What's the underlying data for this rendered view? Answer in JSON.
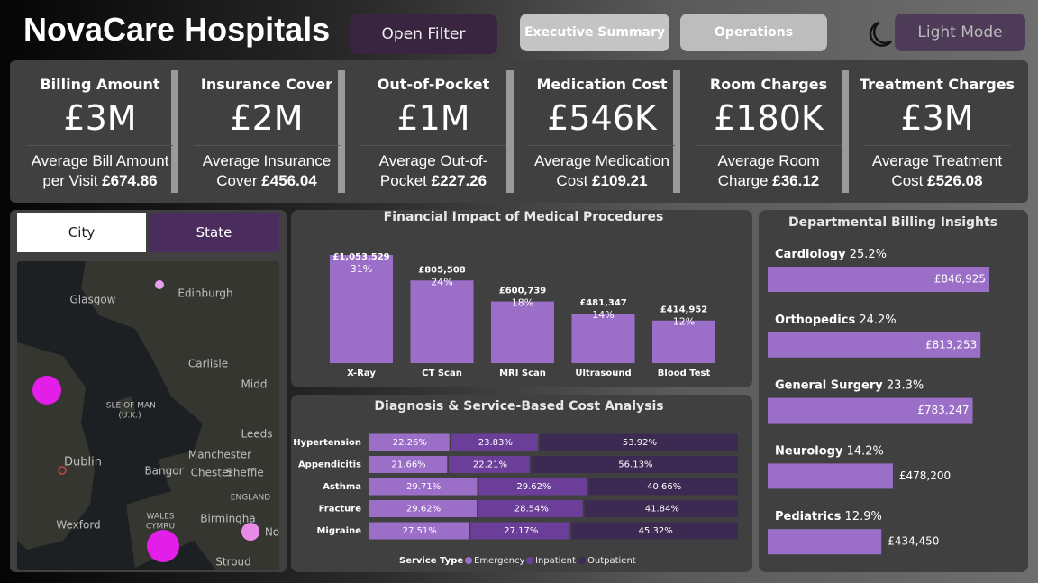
{
  "header": {
    "title": "NovaCare Hospitals",
    "buttons": [
      "Open Filter",
      "Executive Summary",
      "Operations",
      "Light Mode"
    ]
  },
  "kpis": [
    {
      "title": "Billing Amount",
      "value": "£3M",
      "caption": "Average Bill Amount per Visit",
      "caption_value": "£674.86"
    },
    {
      "title": "Insurance Cover",
      "value": "£2M",
      "caption": "Average Insurance Cover",
      "caption_value": "£456.04"
    },
    {
      "title": "Out-of-Pocket",
      "value": "£1M",
      "caption": "Average Out-of-Pocket",
      "caption_value": "£227.26"
    },
    {
      "title": "Medication Cost",
      "value": "£546K",
      "caption": "Average Medication Cost",
      "caption_value": "£109.21"
    },
    {
      "title": "Room Charges",
      "value": "£180K",
      "caption": "Average Room Charge",
      "caption_value": "£36.12"
    },
    {
      "title": "Treatment Charges",
      "value": "£3M",
      "caption": "Average Treatment Cost",
      "caption_value": "£526.08"
    }
  ],
  "map": {
    "tabs": [
      "City",
      "State"
    ],
    "labels": [
      "Glasgow",
      "Edinburgh",
      "Carlisle",
      "Midd",
      "ISLE OF MAN",
      "(U.K.)",
      "Leeds",
      "Manchester",
      "Sheffie",
      "Dublin",
      "Bangor",
      "Chester",
      "ENGLAND",
      "WALES",
      "CYMRU",
      "Birmingha",
      "No",
      "Wexford",
      "Stroud"
    ]
  },
  "procedures": {
    "type": "bar",
    "title": "Financial Impact of Medical Procedures",
    "categories": [
      "X-Ray",
      "CT Scan",
      "MRI Scan",
      "Ultrasound",
      "Blood Test"
    ],
    "values": [
      1053529,
      805508,
      600739,
      481347,
      414952
    ],
    "value_labels": [
      "£1,053,529",
      "£805,508",
      "£600,739",
      "£481,347",
      "£414,952"
    ],
    "shares": [
      31,
      24,
      18,
      14,
      12
    ],
    "share_labels": [
      "31%",
      "24%",
      "18%",
      "14%",
      "12%"
    ],
    "color": "#9b6fc8"
  },
  "diagnosis": {
    "type": "stacked_bar",
    "title": "Diagnosis & Service-Based Cost Analysis",
    "categories": [
      "Hypertension",
      "Appendicitis",
      "Asthma",
      "Fracture",
      "Migraine"
    ],
    "legend_title": "Service Type",
    "series": [
      {
        "name": "Emergency",
        "color": "#9b6fc8",
        "values": [
          22.26,
          21.66,
          29.71,
          29.62,
          27.51
        ],
        "value_labels": [
          "22.26%",
          "21.66%",
          "29.71%",
          "29.62%",
          "27.51%"
        ]
      },
      {
        "name": "Inpatient",
        "color": "#6b3f99",
        "values": [
          23.83,
          22.21,
          29.62,
          28.54,
          27.17
        ],
        "value_labels": [
          "23.83%",
          "22.21%",
          "29.62%",
          "28.54%",
          "27.17%"
        ]
      },
      {
        "name": "Outpatient",
        "color": "#3d2a52",
        "values": [
          53.92,
          56.13,
          40.66,
          41.84,
          45.32
        ],
        "value_labels": [
          "53.92%",
          "56.13%",
          "40.66%",
          "41.84%",
          "45.32%"
        ]
      }
    ]
  },
  "departments": {
    "type": "bar",
    "orientation": "horizontal",
    "title": "Departmental Billing Insights",
    "categories": [
      "Cardiology",
      "Orthopedics",
      "General Surgery",
      "Neurology",
      "Pediatrics"
    ],
    "shares": [
      25.2,
      24.2,
      23.3,
      14.2,
      12.9
    ],
    "share_labels": [
      "25.2%",
      "24.2%",
      "23.3%",
      "14.2%",
      "12.9%"
    ],
    "values": [
      846925,
      813253,
      783247,
      478200,
      434450
    ],
    "value_labels": [
      "£846,925",
      "£813,253",
      "£783,247",
      "£478,200",
      "£434,450"
    ],
    "color": "#9b6fc8"
  }
}
